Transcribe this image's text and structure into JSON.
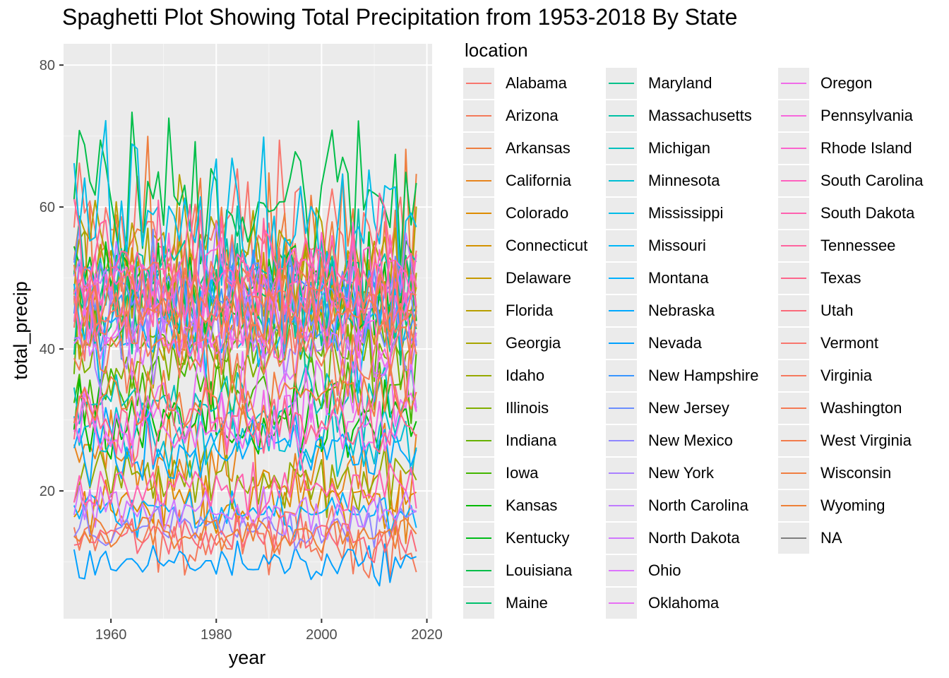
{
  "title": "Spaghetti Plot Showing Total Precipitation from 1953-2018 By State",
  "chart_data": {
    "type": "line",
    "title": "Spaghetti Plot Showing Total Precipitation from 1953-2018 By State",
    "xlabel": "year",
    "ylabel": "total_precip",
    "xlim": [
      1951,
      2021
    ],
    "ylim": [
      2,
      83
    ],
    "x_ticks": [
      1960,
      1980,
      2000,
      2020
    ],
    "y_ticks": [
      20,
      40,
      60,
      80
    ],
    "x_tick_labels": [
      "1960",
      "1980",
      "2000",
      "2020"
    ],
    "y_tick_labels": [
      "20",
      "40",
      "60",
      "80"
    ],
    "grid": true,
    "background": "#ebebeb",
    "legend_position": "right",
    "legend_title": "location",
    "x": [
      1953,
      2018
    ],
    "series": [
      {
        "name": "Alabama",
        "color": "#F8766D",
        "values_range": [
          38,
          74
        ]
      },
      {
        "name": "Arizona",
        "color": "#F47A5A",
        "values_range": [
          6,
          20
        ]
      },
      {
        "name": "Arkansas",
        "color": "#EE7E3F",
        "values_range": [
          33,
          72
        ]
      },
      {
        "name": "California",
        "color": "#E7851E",
        "values_range": [
          12,
          35
        ]
      },
      {
        "name": "Colorado",
        "color": "#DE8C00",
        "values_range": [
          12,
          25
        ]
      },
      {
        "name": "Connecticut",
        "color": "#D39200",
        "values_range": [
          35,
          60
        ]
      },
      {
        "name": "Delaware",
        "color": "#C69900",
        "values_range": [
          32,
          58
        ]
      },
      {
        "name": "Florida",
        "color": "#B79F00",
        "values_range": [
          40,
          67
        ]
      },
      {
        "name": "Georgia",
        "color": "#A7A500",
        "values_range": [
          38,
          62
        ]
      },
      {
        "name": "Idaho",
        "color": "#95A900",
        "values_range": [
          15,
          28
        ]
      },
      {
        "name": "Illinois",
        "color": "#80AE00",
        "values_range": [
          30,
          48
        ]
      },
      {
        "name": "Indiana",
        "color": "#67B200",
        "values_range": [
          32,
          50
        ]
      },
      {
        "name": "Iowa",
        "color": "#43B600",
        "values_range": [
          25,
          42
        ]
      },
      {
        "name": "Kansas",
        "color": "#00B900",
        "values_range": [
          20,
          38
        ]
      },
      {
        "name": "Kentucky",
        "color": "#00BC18",
        "values_range": [
          36,
          62
        ]
      },
      {
        "name": "Louisiana",
        "color": "#00BE49",
        "values_range": [
          44,
          79
        ]
      },
      {
        "name": "Maine",
        "color": "#00C06C",
        "values_range": [
          36,
          58
        ]
      },
      {
        "name": "Maryland",
        "color": "#00C18A",
        "values_range": [
          33,
          58
        ]
      },
      {
        "name": "Massachusetts",
        "color": "#00C1A5",
        "values_range": [
          38,
          62
        ]
      },
      {
        "name": "Michigan",
        "color": "#00C1BE",
        "values_range": [
          26,
          40
        ]
      },
      {
        "name": "Minnesota",
        "color": "#00BFD4",
        "values_range": [
          20,
          35
        ]
      },
      {
        "name": "Mississippi",
        "color": "#00BCE8",
        "values_range": [
          42,
          75
        ]
      },
      {
        "name": "Missouri",
        "color": "#00B7F8",
        "values_range": [
          32,
          55
        ]
      },
      {
        "name": "Montana",
        "color": "#00B1FF",
        "values_range": [
          12,
          22
        ]
      },
      {
        "name": "Nebraska",
        "color": "#00A9FF",
        "values_range": [
          18,
          33
        ]
      },
      {
        "name": "Nevada",
        "color": "#00A0FF",
        "values_range": [
          6,
          14
        ]
      },
      {
        "name": "New Hampshire",
        "color": "#3996FF",
        "values_range": [
          36,
          58
        ]
      },
      {
        "name": "New Jersey",
        "color": "#6B8EFF",
        "values_range": [
          36,
          60
        ]
      },
      {
        "name": "New Mexico",
        "color": "#8F86FF",
        "values_range": [
          10,
          20
        ]
      },
      {
        "name": "New York",
        "color": "#AA80FF",
        "values_range": [
          32,
          50
        ]
      },
      {
        "name": "North Carolina",
        "color": "#BF7BFF",
        "values_range": [
          38,
          60
        ]
      },
      {
        "name": "North Dakota",
        "color": "#D077FF",
        "values_range": [
          12,
          22
        ]
      },
      {
        "name": "Ohio",
        "color": "#DD74FD",
        "values_range": [
          32,
          50
        ]
      },
      {
        "name": "Oklahoma",
        "color": "#E86FF4",
        "values_range": [
          22,
          45
        ]
      },
      {
        "name": "Oregon",
        "color": "#F06BE8",
        "values_range": [
          22,
          38
        ]
      },
      {
        "name": "Pennsylvania",
        "color": "#F767DC",
        "values_range": [
          34,
          52
        ]
      },
      {
        "name": "Rhode Island",
        "color": "#FB64CE",
        "values_range": [
          38,
          62
        ]
      },
      {
        "name": "South Carolina",
        "color": "#FE61BF",
        "values_range": [
          38,
          60
        ]
      },
      {
        "name": "South Dakota",
        "color": "#FF61AF",
        "values_range": [
          14,
          26
        ]
      },
      {
        "name": "Tennessee",
        "color": "#FF639E",
        "values_range": [
          40,
          64
        ]
      },
      {
        "name": "Texas",
        "color": "#FD668C",
        "values_range": [
          20,
          38
        ]
      },
      {
        "name": "Utah",
        "color": "#FA6A7A",
        "values_range": [
          9,
          18
        ]
      },
      {
        "name": "Vermont",
        "color": "#F8766D",
        "values_range": [
          36,
          56
        ]
      },
      {
        "name": "Virginia",
        "color": "#F6785F",
        "values_range": [
          36,
          58
        ]
      },
      {
        "name": "Washington",
        "color": "#F47A55",
        "values_range": [
          30,
          48
        ]
      },
      {
        "name": "West Virginia",
        "color": "#F27C4B",
        "values_range": [
          36,
          56
        ]
      },
      {
        "name": "Wisconsin",
        "color": "#F07E41",
        "values_range": [
          26,
          40
        ]
      },
      {
        "name": "Wyoming",
        "color": "#EE8037",
        "values_range": [
          10,
          18
        ]
      },
      {
        "name": "NA",
        "color": "#7F7F7F",
        "values_range": []
      }
    ]
  },
  "legend": {
    "title": "location",
    "columns": [
      [
        "Alabama",
        "Arizona",
        "Arkansas",
        "California",
        "Colorado",
        "Connecticut",
        "Delaware",
        "Florida",
        "Georgia",
        "Idaho",
        "Illinois",
        "Indiana",
        "Iowa",
        "Kansas",
        "Kentucky",
        "Louisiana",
        "Maine"
      ],
      [
        "Maryland",
        "Massachusetts",
        "Michigan",
        "Minnesota",
        "Mississippi",
        "Missouri",
        "Montana",
        "Nebraska",
        "Nevada",
        "New Hampshire",
        "New Jersey",
        "New Mexico",
        "New York",
        "North Carolina",
        "North Dakota",
        "Ohio",
        "Oklahoma"
      ],
      [
        "Oregon",
        "Pennsylvania",
        "Rhode Island",
        "South Carolina",
        "South Dakota",
        "Tennessee",
        "Texas",
        "Utah",
        "Vermont",
        "Virginia",
        "Washington",
        "West Virginia",
        "Wisconsin",
        "Wyoming",
        "NA"
      ]
    ],
    "colors": {
      "Alabama": "#F8766D",
      "Arizona": "#F47A5A",
      "Arkansas": "#EE7E3F",
      "California": "#E7851E",
      "Colorado": "#DE8C00",
      "Connecticut": "#D39200",
      "Delaware": "#C69900",
      "Florida": "#B79F00",
      "Georgia": "#A7A500",
      "Idaho": "#95A900",
      "Illinois": "#80AE00",
      "Indiana": "#67B200",
      "Iowa": "#43B600",
      "Kansas": "#00B900",
      "Kentucky": "#00BC18",
      "Louisiana": "#00BE49",
      "Maine": "#00C06C",
      "Maryland": "#00C18A",
      "Massachusetts": "#00C1A5",
      "Michigan": "#00C1BE",
      "Minnesota": "#00BFD4",
      "Mississippi": "#00BCE8",
      "Missouri": "#00B7F8",
      "Montana": "#00B1FF",
      "Nebraska": "#00A9FF",
      "Nevada": "#00A0FF",
      "New Hampshire": "#3996FF",
      "New Jersey": "#6B8EFF",
      "New Mexico": "#8F86FF",
      "New York": "#AA80FF",
      "North Carolina": "#BF7BFF",
      "North Dakota": "#D077FF",
      "Ohio": "#DD74FD",
      "Oklahoma": "#E86FF4",
      "Oregon": "#F06BE8",
      "Pennsylvania": "#F767DC",
      "Rhode Island": "#FB64CE",
      "South Carolina": "#FE61BF",
      "South Dakota": "#FF61AF",
      "Tennessee": "#FF639E",
      "Texas": "#FD668C",
      "Utah": "#FA6A7A",
      "Vermont": "#F8766D",
      "Virginia": "#F6785F",
      "Washington": "#F47A55",
      "West Virginia": "#F27C4B",
      "Wisconsin": "#F07E41",
      "Wyoming": "#EE8037",
      "NA": "#7F7F7F"
    }
  }
}
